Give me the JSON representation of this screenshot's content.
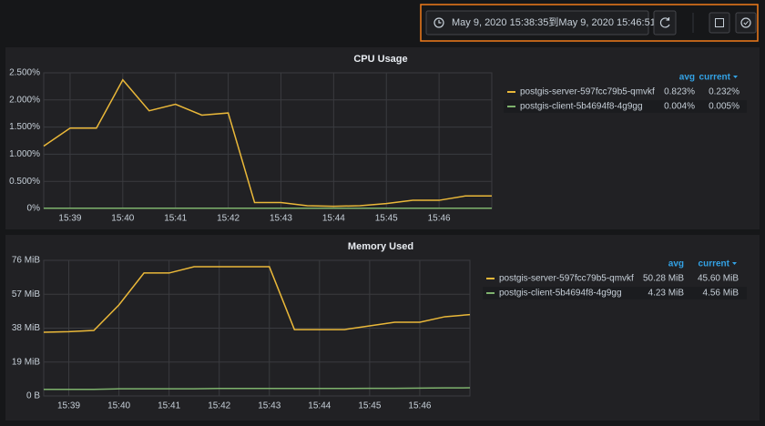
{
  "toolbar": {
    "time_range": "May 9, 2020 15:38:35到May 9, 2020 15:46:51"
  },
  "chart_data": [
    {
      "type": "line",
      "title": "CPU Usage",
      "categories": [
        null,
        "15:39",
        null,
        "15:40",
        null,
        "15:41",
        null,
        "15:42",
        null,
        "15:43",
        null,
        "15:44",
        null,
        "15:45",
        null,
        "15:46",
        null,
        null
      ],
      "series": [
        {
          "name": "postgis-server-597fcc79b5-qmvkf",
          "color": "#eab839",
          "values": [
            1.15,
            1.48,
            1.48,
            2.37,
            1.8,
            1.92,
            1.72,
            1.76,
            0.11,
            0.11,
            0.05,
            0.04,
            0.05,
            0.09,
            0.15,
            0.15,
            0.23,
            0.23
          ],
          "avg": "0.823%",
          "current": "0.232%"
        },
        {
          "name": "postgis-client-5b4694f8-4g9gg",
          "color": "#7eb26d",
          "values": [
            0.004,
            0.004,
            0.004,
            0.004,
            0.004,
            0.004,
            0.004,
            0.004,
            0.004,
            0.004,
            0.004,
            0.004,
            0.004,
            0.004,
            0.004,
            0.004,
            0.005,
            0.005
          ],
          "avg": "0.004%",
          "current": "0.005%"
        }
      ],
      "legend_columns": [
        "avg",
        "current"
      ],
      "ylim": [
        0,
        2.5
      ],
      "yticks": [
        {
          "value": 0,
          "label": "0%"
        },
        {
          "value": 0.5,
          "label": "0.500%"
        },
        {
          "value": 1,
          "label": "1.000%"
        },
        {
          "value": 1.5,
          "label": "1.500%"
        },
        {
          "value": 2,
          "label": "2.000%"
        },
        {
          "value": 2.5,
          "label": "2.500%"
        }
      ],
      "grid": true
    },
    {
      "type": "line",
      "title": "Memory Used",
      "categories": [
        null,
        "15:39",
        null,
        "15:40",
        null,
        "15:41",
        null,
        "15:42",
        null,
        "15:43",
        null,
        "15:44",
        null,
        "15:45",
        null,
        "15:46",
        null,
        null
      ],
      "series": [
        {
          "name": "postgis-server-597fcc79b5-qmvkf",
          "color": "#eab839",
          "values": [
            35.7,
            36,
            36.7,
            51,
            68.9,
            68.9,
            72.4,
            72.4,
            72.4,
            72.4,
            37.2,
            37.2,
            37.2,
            39.3,
            41.3,
            41.3,
            44.4,
            45.6
          ],
          "avg": "50.28 MiB",
          "current": "45.60 MiB"
        },
        {
          "name": "postgis-client-5b4694f8-4g9gg",
          "color": "#7eb26d",
          "values": [
            3.7,
            3.7,
            3.7,
            4,
            4,
            4,
            4,
            4.2,
            4.2,
            4.2,
            4.2,
            4.2,
            4.2,
            4.3,
            4.3,
            4.4,
            4.5,
            4.56
          ],
          "avg": "4.23 MiB",
          "current": "4.56 MiB"
        }
      ],
      "legend_columns": [
        "avg",
        "current"
      ],
      "ylim": [
        0,
        76
      ],
      "yticks": [
        {
          "value": 0,
          "label": "0 B"
        },
        {
          "value": 19,
          "label": "19 MiB"
        },
        {
          "value": 38,
          "label": "38 MiB"
        },
        {
          "value": 57,
          "label": "57 MiB"
        },
        {
          "value": 76,
          "label": "76 MiB"
        }
      ],
      "grid": true
    }
  ]
}
